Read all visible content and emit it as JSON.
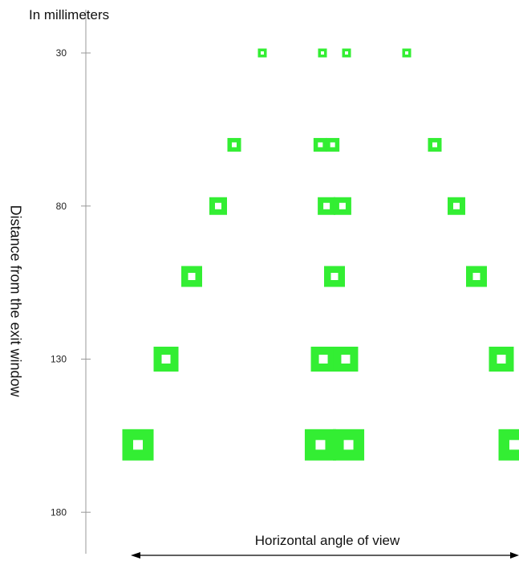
{
  "header": {
    "unit_label": "In millimeters"
  },
  "axis": {
    "y_title": "Distance from the exit window",
    "x_title": "Horizontal angle of view",
    "y_ticks": [
      30,
      80,
      130,
      180
    ]
  },
  "colors": {
    "spot": "#33ee33",
    "spot_center": "#ffffff",
    "axis": "#999999",
    "arrow": "#000000"
  },
  "rows": [
    {
      "distance": 30,
      "spots": [
        {
          "h": -90,
          "size": "xs"
        },
        {
          "h": -15,
          "size": "xs"
        },
        {
          "h": 15,
          "size": "xs"
        },
        {
          "h": 90,
          "size": "xs"
        }
      ]
    },
    {
      "distance": 60,
      "spots": [
        {
          "h": -125,
          "size": "s"
        },
        {
          "h": -10,
          "size": "s",
          "double": true
        },
        {
          "h": 125,
          "size": "s"
        }
      ]
    },
    {
      "distance": 80,
      "spots": [
        {
          "h": -145,
          "size": "m"
        },
        {
          "h": 0,
          "size": "m",
          "double": true
        },
        {
          "h": 152,
          "size": "m"
        }
      ]
    },
    {
      "distance": 103,
      "spots": [
        {
          "h": -178,
          "size": "l"
        },
        {
          "h": 0,
          "size": "l"
        },
        {
          "h": 177,
          "size": "l"
        }
      ]
    },
    {
      "distance": 130,
      "spots": [
        {
          "h": -210,
          "size": "xl"
        },
        {
          "h": 0,
          "size": "xl",
          "double": true
        },
        {
          "h": 208,
          "size": "xl"
        }
      ]
    },
    {
      "distance": 158,
      "spots": [
        {
          "h": -245,
          "size": "xxl"
        },
        {
          "h": 0,
          "size": "xxl",
          "double": true
        },
        {
          "h": 230,
          "size": "xxl",
          "clipped": true
        }
      ]
    }
  ]
}
